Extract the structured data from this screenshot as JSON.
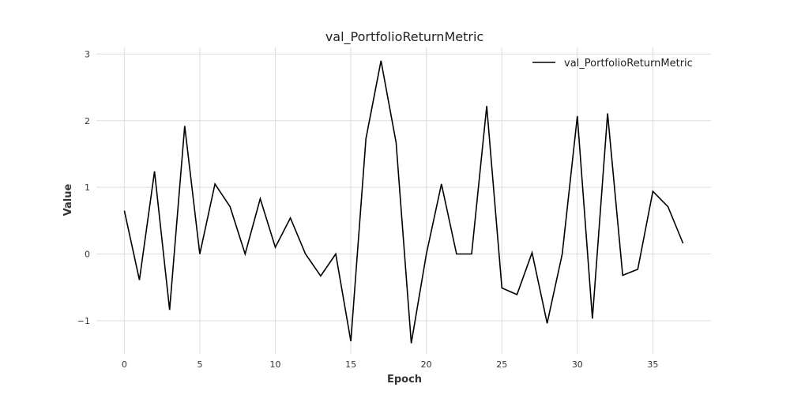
{
  "chart_data": {
    "type": "line",
    "title": "val_PortfolioReturnMetric",
    "xlabel": "Epoch",
    "ylabel": "Value",
    "xlim": [
      -1.85,
      38.85
    ],
    "ylim": [
      -1.5,
      3.1
    ],
    "x_ticks": [
      0,
      5,
      10,
      15,
      20,
      25,
      30,
      35
    ],
    "y_ticks": [
      -1,
      0,
      1,
      2,
      3
    ],
    "y_tick_labels": [
      "−1",
      "0",
      "1",
      "2",
      "3"
    ],
    "grid": true,
    "legend_position": "top-right",
    "series": [
      {
        "name": "val_PortfolioReturnMetric",
        "color": "#000000",
        "x": [
          0,
          1,
          2,
          3,
          4,
          5,
          6,
          7,
          8,
          9,
          10,
          11,
          12,
          13,
          14,
          15,
          16,
          17,
          18,
          19,
          20,
          21,
          22,
          23,
          24,
          25,
          26,
          27,
          28,
          29,
          30,
          31,
          32,
          33,
          34,
          35,
          36,
          37
        ],
        "values": [
          0.65,
          -0.39,
          1.24,
          -0.84,
          1.92,
          0.0,
          1.05,
          0.71,
          0.0,
          0.83,
          0.1,
          0.54,
          0.0,
          -0.33,
          0.0,
          -1.31,
          1.73,
          2.9,
          1.67,
          -1.34,
          0.0,
          1.05,
          0.0,
          0.0,
          2.22,
          -0.51,
          -0.61,
          0.02,
          -1.04,
          0.0,
          2.07,
          -0.97,
          2.11,
          -0.32,
          -0.23,
          0.94,
          0.71,
          0.16
        ]
      }
    ]
  }
}
